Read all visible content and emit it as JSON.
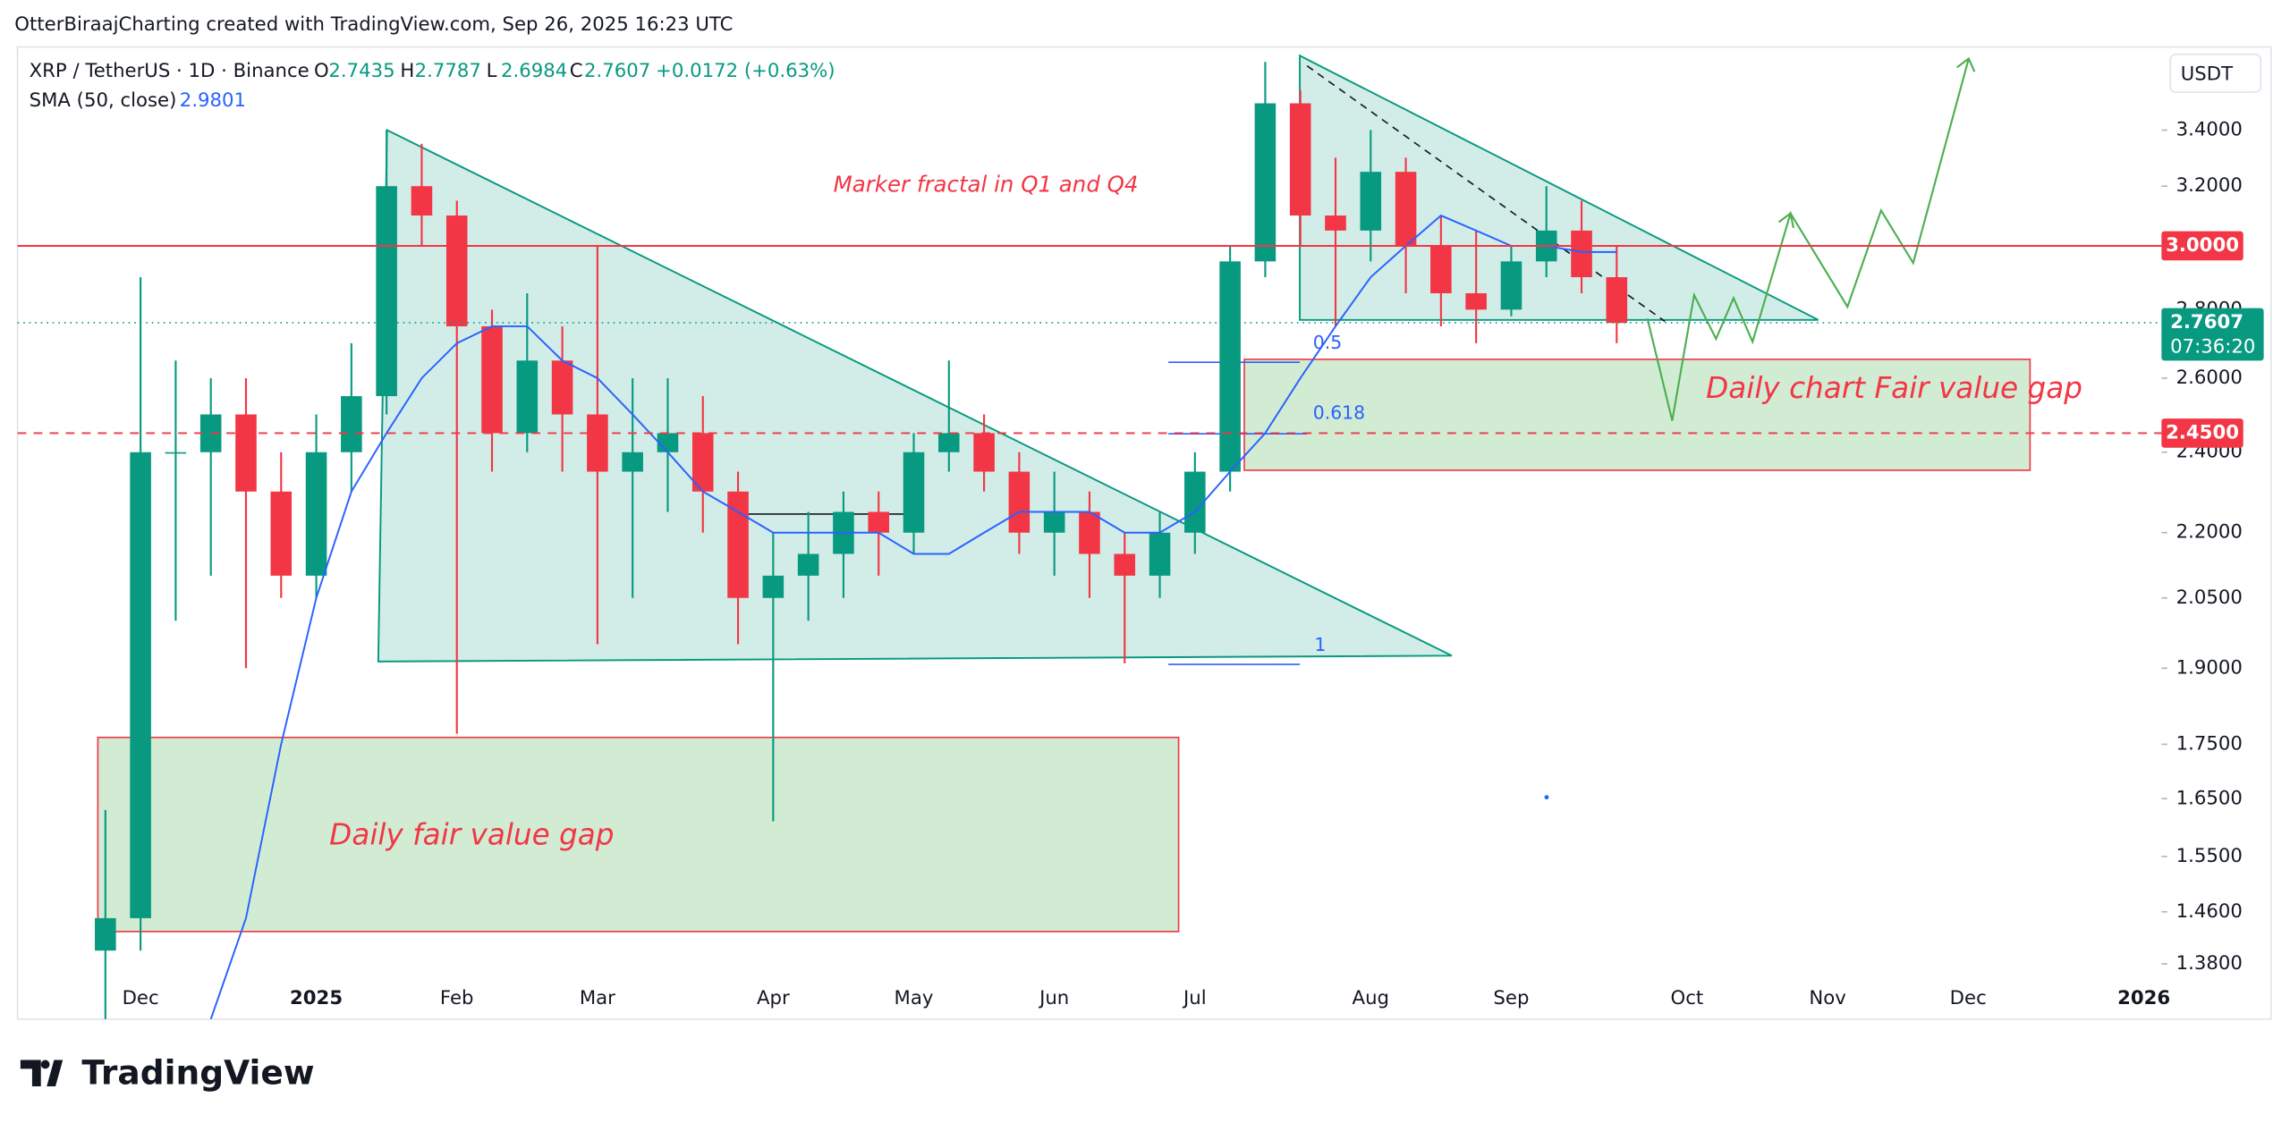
{
  "header": {
    "attribution": "OtterBiraajCharting created with TradingView.com, Sep 26, 2025 16:23 UTC"
  },
  "legend": {
    "symbol": "XRP / TetherUS · 1D · Binance",
    "ohlc": [
      [
        "O",
        "2.7435"
      ],
      [
        "H",
        "2.7787"
      ],
      [
        "L",
        "2.6984"
      ],
      [
        "C",
        "2.7607"
      ]
    ],
    "change": "+0.0172 (+0.63%)",
    "indicator_value": "2.9801"
  },
  "chart_data": {
    "type": "candlestick",
    "categories": [
      null,
      null,
      null,
      "Dec",
      null,
      null,
      null,
      null,
      "2025",
      null,
      null,
      null,
      "Feb",
      null,
      null,
      null,
      "Mar",
      null,
      null,
      null,
      null,
      "Apr",
      null,
      null,
      null,
      "May",
      null,
      null,
      null,
      "Jun",
      null,
      null,
      null,
      "Jul",
      null,
      null,
      null,
      null,
      "Aug",
      null,
      null,
      null,
      "Sep",
      null,
      null,
      null,
      null,
      "Oct",
      null,
      null,
      null,
      "Nov",
      null,
      null,
      null,
      "Dec",
      null,
      null,
      null,
      null,
      "2026"
    ],
    "open": [
      null,
      null,
      1.4,
      1.45,
      2.4,
      2.4,
      2.5,
      2.3,
      2.1,
      2.4,
      2.55,
      3.2,
      3.1,
      2.75,
      2.45,
      2.65,
      2.5,
      2.35,
      2.4,
      2.45,
      2.3,
      2.05,
      2.1,
      2.15,
      2.25,
      2.2,
      2.4,
      2.45,
      2.35,
      2.2,
      2.25,
      2.15,
      2.1,
      2.2,
      2.35,
      2.95,
      3.5,
      3.1,
      3.05,
      3.25,
      3.0,
      2.85,
      2.8,
      2.95,
      3.05,
      2.9,
      null,
      null,
      null,
      null,
      null,
      null,
      null,
      null,
      null,
      null,
      null,
      null,
      null,
      null,
      null
    ],
    "high": [
      null,
      null,
      1.63,
      2.9,
      2.65,
      2.6,
      2.6,
      2.4,
      2.5,
      2.7,
      3.4,
      3.35,
      3.15,
      2.8,
      2.85,
      2.75,
      3.0,
      2.6,
      2.6,
      2.55,
      2.35,
      2.2,
      2.25,
      2.3,
      2.3,
      2.45,
      2.65,
      2.5,
      2.4,
      2.35,
      2.3,
      2.2,
      2.25,
      2.4,
      3.0,
      3.66,
      3.55,
      3.3,
      3.4,
      3.3,
      3.1,
      3.05,
      3.0,
      3.2,
      3.15,
      3.0,
      null,
      null,
      null,
      null,
      null,
      null,
      null,
      null,
      null,
      null,
      null,
      null,
      null,
      null,
      null
    ],
    "low": [
      null,
      null,
      1.3,
      1.4,
      2.0,
      2.1,
      1.9,
      2.05,
      2.05,
      2.3,
      2.5,
      3.0,
      1.77,
      2.35,
      2.4,
      2.35,
      1.95,
      2.05,
      2.25,
      2.2,
      1.95,
      1.61,
      2.0,
      2.05,
      2.1,
      2.15,
      2.35,
      2.3,
      2.15,
      2.1,
      2.05,
      1.91,
      2.05,
      2.15,
      2.3,
      2.9,
      3.0,
      2.75,
      2.95,
      2.85,
      2.75,
      2.7,
      2.78,
      2.9,
      2.85,
      2.7,
      null,
      null,
      null,
      null,
      null,
      null,
      null,
      null,
      null,
      null,
      null,
      null,
      null,
      null,
      null
    ],
    "close": [
      null,
      null,
      1.45,
      2.4,
      2.4,
      2.5,
      2.3,
      2.1,
      2.4,
      2.55,
      3.2,
      3.1,
      2.75,
      2.45,
      2.65,
      2.5,
      2.35,
      2.4,
      2.45,
      2.3,
      2.05,
      2.1,
      2.15,
      2.25,
      2.2,
      2.4,
      2.45,
      2.35,
      2.2,
      2.25,
      2.15,
      2.1,
      2.2,
      2.35,
      2.95,
      3.5,
      3.1,
      3.05,
      3.25,
      3.0,
      2.85,
      2.8,
      2.95,
      3.05,
      2.9,
      2.76,
      null,
      null,
      null,
      null,
      null,
      null,
      null,
      null,
      null,
      null,
      null,
      null,
      null,
      null,
      null
    ],
    "up_color": "#089981",
    "down_color": "#f23645",
    "series": [
      {
        "name": "SMA (50, close)",
        "color": "#2962ff",
        "values": [
          null,
          null,
          null,
          null,
          null,
          1.3,
          1.45,
          1.75,
          2.05,
          2.3,
          2.45,
          2.6,
          2.7,
          2.75,
          2.75,
          2.65,
          2.6,
          2.5,
          2.4,
          2.3,
          2.25,
          2.2,
          2.2,
          2.2,
          2.2,
          2.15,
          2.15,
          2.2,
          2.25,
          2.25,
          2.25,
          2.2,
          2.2,
          2.25,
          2.35,
          2.45,
          2.6,
          2.75,
          2.9,
          3.0,
          3.1,
          3.05,
          3.0,
          3.0,
          2.98,
          2.98,
          null,
          null,
          null,
          null,
          null,
          null,
          null,
          null,
          null,
          null,
          null,
          null,
          null,
          null,
          null
        ]
      }
    ],
    "ylim": [
      1.3,
      3.72
    ],
    "log_scale": true,
    "currency": "USDT",
    "yticks": [
      {
        "value": 1.38,
        "label": "1.3800"
      },
      {
        "value": 1.46,
        "label": "1.4600"
      },
      {
        "value": 1.55,
        "label": "1.5500"
      },
      {
        "value": 1.65,
        "label": "1.6500"
      },
      {
        "value": 1.75,
        "label": "1.7500"
      },
      {
        "value": 1.9,
        "label": "1.9000"
      },
      {
        "value": 2.05,
        "label": "2.0500"
      },
      {
        "value": 2.2,
        "label": "2.2000"
      },
      {
        "value": 2.4,
        "label": "2.4000"
      },
      {
        "value": 2.6,
        "label": "2.6000"
      },
      {
        "value": 2.8,
        "label": "2.8000"
      },
      {
        "value": 3.2,
        "label": "3.2000"
      },
      {
        "value": 3.4,
        "label": "3.4000"
      }
    ],
    "price_lines": [
      {
        "value": 3.0,
        "label": "3.0000",
        "color": "#f23645",
        "style": "solid"
      },
      {
        "value": 2.45,
        "label": "2.4500",
        "color": "#f23645",
        "style": "dashed"
      }
    ],
    "last_price": {
      "value": 2.7607,
      "label": "2.7607",
      "countdown": "07:36:20",
      "color": "#089981"
    },
    "annotations": [
      "Marker fractal in Q1 and Q4",
      "Daily chart Fair value gap",
      "Daily fair value gap"
    ],
    "fib_labels": [
      "0.5",
      "0.618",
      "1"
    ]
  },
  "footer": {
    "brand": "TradingView"
  }
}
